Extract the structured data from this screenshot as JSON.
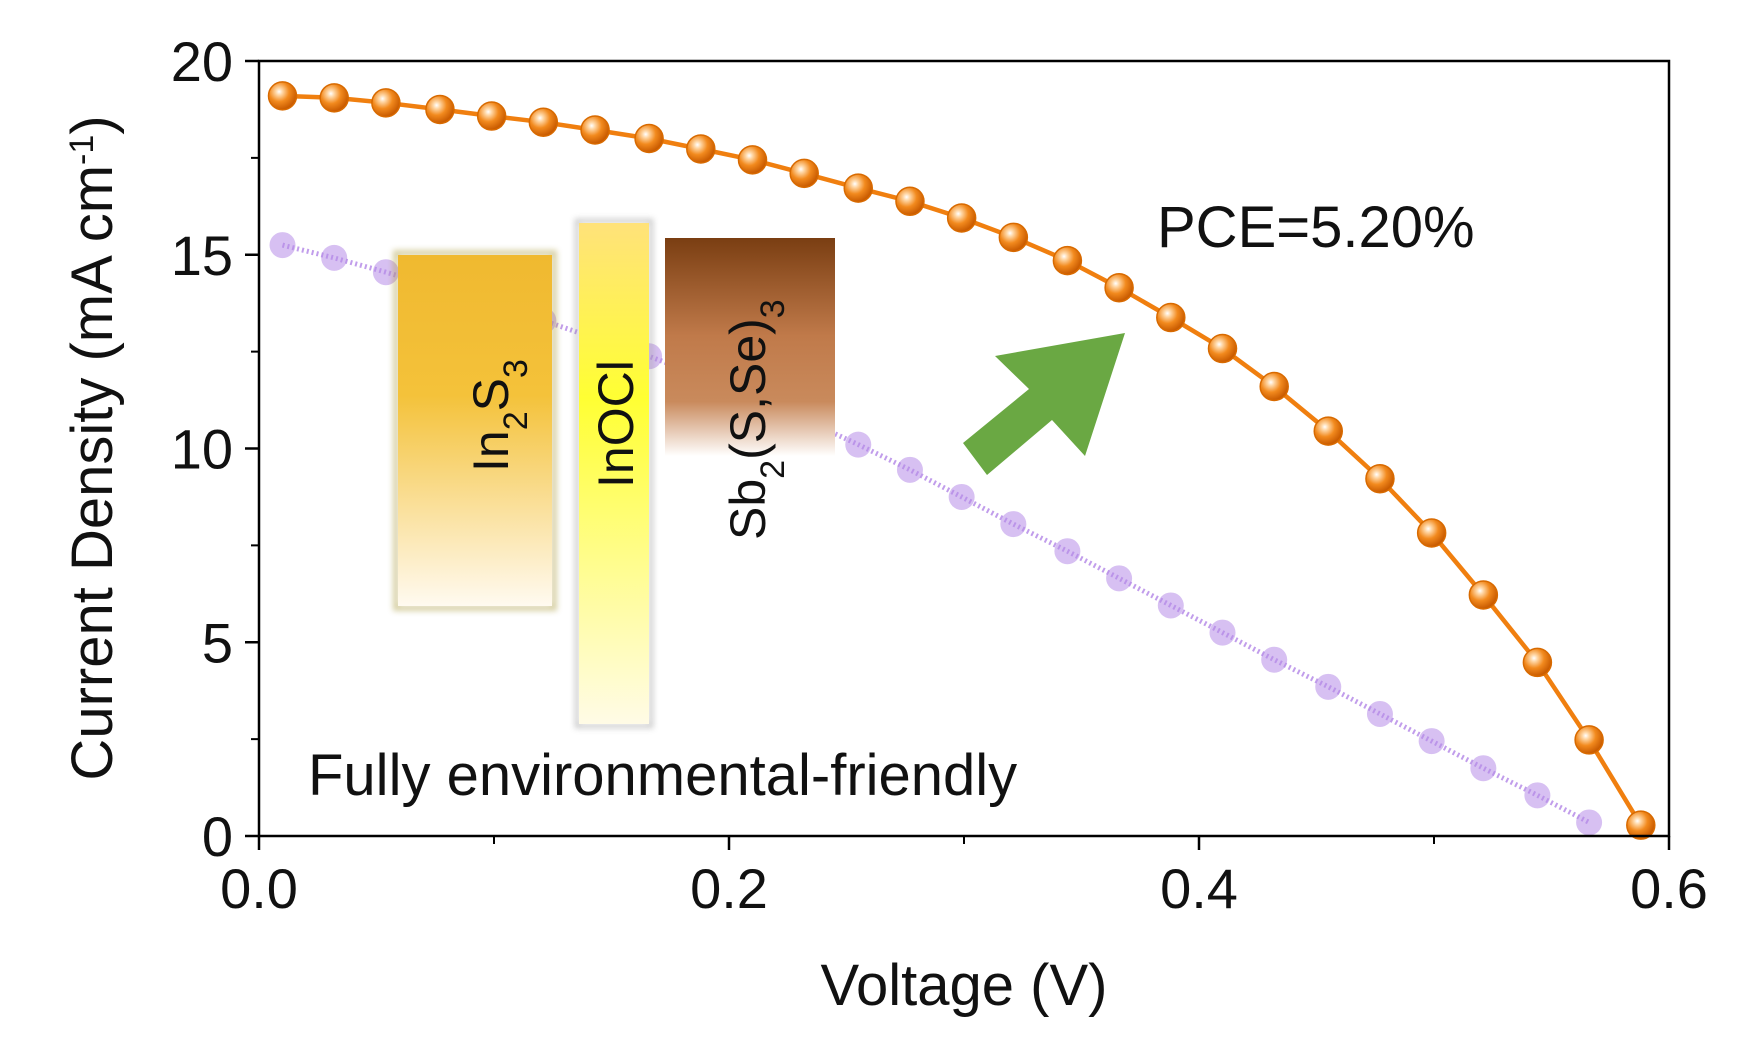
{
  "chart_data": {
    "type": "line",
    "title": "",
    "xlabel": "Voltage (V)",
    "ylabel_main": "Current Density (mA cm",
    "ylabel_sup": "-1",
    "ylabel_close": ")",
    "xlim": [
      0,
      0.6
    ],
    "ylim": [
      0,
      20
    ],
    "xticks": [
      0.0,
      0.2,
      0.4,
      0.6
    ],
    "xtick_labels": [
      "0.0",
      "0.2",
      "0.4",
      "0.6"
    ],
    "yticks": [
      0,
      5,
      10,
      15,
      20
    ],
    "ytick_labels": [
      "0",
      "5",
      "10",
      "15",
      "20"
    ],
    "grid": false,
    "legend": "none",
    "series": [
      {
        "color": "#f07f0f",
        "marker": "filled-sphere",
        "x": [
          0.01,
          0.032,
          0.054,
          0.077,
          0.099,
          0.121,
          0.143,
          0.166,
          0.188,
          0.21,
          0.232,
          0.255,
          0.277,
          0.299,
          0.321,
          0.344,
          0.366,
          0.388,
          0.41,
          0.432,
          0.455,
          0.477,
          0.499,
          0.521,
          0.544,
          0.566,
          0.588
        ],
        "y": [
          19.1,
          19.05,
          18.92,
          18.75,
          18.58,
          18.42,
          18.22,
          18.0,
          17.73,
          17.45,
          17.1,
          16.72,
          16.38,
          15.95,
          15.45,
          14.85,
          14.15,
          13.38,
          12.58,
          11.6,
          10.45,
          9.22,
          7.82,
          6.22,
          4.48,
          2.48,
          0.28
        ]
      },
      {
        "color": "#b68ce8",
        "marker": "transparent-circle",
        "x": [
          0.01,
          0.032,
          0.054,
          0.077,
          0.099,
          0.121,
          0.143,
          0.166,
          0.188,
          0.21,
          0.232,
          0.255,
          0.277,
          0.299,
          0.321,
          0.344,
          0.366,
          0.388,
          0.41,
          0.432,
          0.455,
          0.477,
          0.499,
          0.521,
          0.544,
          0.566
        ],
        "y": [
          15.25,
          14.92,
          14.55,
          14.15,
          13.75,
          13.3,
          12.85,
          12.38,
          11.88,
          11.3,
          10.75,
          10.1,
          9.45,
          8.75,
          8.05,
          7.35,
          6.65,
          5.95,
          5.25,
          4.55,
          3.85,
          3.15,
          2.45,
          1.75,
          1.05,
          0.35
        ]
      }
    ],
    "annotations": {
      "pce": "PCE=5.20%",
      "footer": "Fully environmental-friendly",
      "arrow_color": "#6aa843"
    },
    "layers": [
      {
        "base": "In",
        "sub1": "2",
        "mid": "S",
        "sub2": "3",
        "tail": "",
        "top_color": "#f0b930",
        "bottom_color": "#fffaf0",
        "border": "#a89a3a"
      },
      {
        "base": "InOCl",
        "sub1": "",
        "mid": "",
        "sub2": "",
        "tail": "",
        "top_color": "#ffe27a",
        "bottom_color": "#fffbe6",
        "border": "#999999"
      },
      {
        "base": "Sb",
        "sub1": "2",
        "mid": "(S,Se)",
        "sub2": "3",
        "tail": "",
        "top_color": "#7a3e12",
        "bottom_color": "#ffffff",
        "border": "#ffffff"
      }
    ]
  }
}
